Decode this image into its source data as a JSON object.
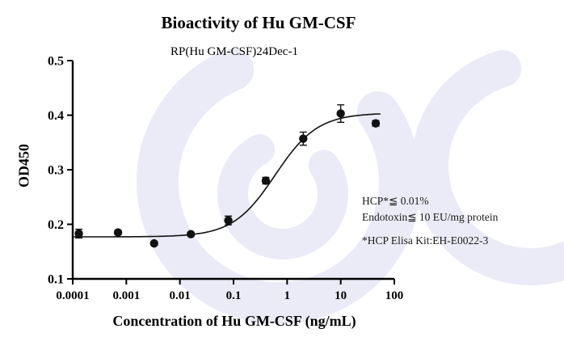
{
  "title": "Bioactivity of Hu GM-CSF",
  "subtitle": "RP(Hu GM-CSF)24Dec-1",
  "annotations": {
    "line1": "HCP*≦ 0.01%",
    "line2": "Endotoxin≦ 10 EU/mg protein",
    "line3": "*HCP Elisa Kit:EH-E0022-3"
  },
  "watermark_color": "#ebebf7",
  "chart_data": {
    "type": "scatter",
    "title": "Bioactivity of Hu GM-CSF",
    "subtitle": "RP(Hu GM-CSF)24Dec-1",
    "xlabel": "Concentration of Hu GM-CSF (ng/mL)",
    "ylabel": "OD450",
    "x_scale": "log",
    "xlim": [
      0.0001,
      100
    ],
    "ylim": [
      0.1,
      0.5
    ],
    "x_ticks": [
      0.0001,
      0.001,
      0.01,
      0.1,
      1,
      10,
      100
    ],
    "x_tick_labels": [
      "0.0001",
      "0.001",
      "0.01",
      "0.1",
      "1",
      "10",
      "100"
    ],
    "y_ticks": [
      0.1,
      0.2,
      0.3,
      0.4,
      0.5
    ],
    "grid": false,
    "legend": "none",
    "marker_color": "#111111",
    "points": [
      {
        "x": 0.00013,
        "y": 0.183,
        "err": 0.008
      },
      {
        "x": 0.0007,
        "y": 0.185,
        "err": 0.004
      },
      {
        "x": 0.0033,
        "y": 0.165,
        "err": 0.003
      },
      {
        "x": 0.016,
        "y": 0.182,
        "err": 0.003
      },
      {
        "x": 0.08,
        "y": 0.207,
        "err": 0.008
      },
      {
        "x": 0.4,
        "y": 0.28,
        "err": 0.006
      },
      {
        "x": 2,
        "y": 0.357,
        "err": 0.012
      },
      {
        "x": 10,
        "y": 0.403,
        "err": 0.016
      },
      {
        "x": 45,
        "y": 0.385,
        "err": 0.005
      }
    ],
    "fit": {
      "bottom": 0.177,
      "top": 0.404,
      "ec50": 0.6,
      "hill": 1.1,
      "x_min": 0.0001,
      "x_max": 55
    }
  }
}
